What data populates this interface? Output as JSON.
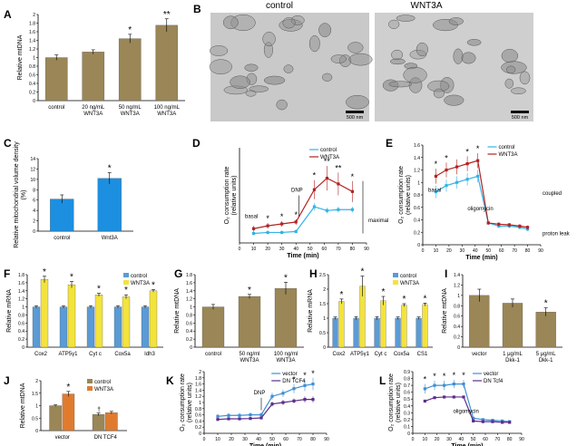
{
  "colors": {
    "olive": "#9a8656",
    "blue": "#5b9bd5",
    "yellow": "#f3e33c",
    "orange": "#e07b2e",
    "red": "#b22222",
    "cyan": "#33b3e6",
    "lightblue": "#3f8fd4",
    "purple": "#5b2d8c",
    "blue_bar": "#1c8fe0"
  },
  "micrographs": {
    "label": "B",
    "control_title": "control",
    "wnt_title": "WNT3A",
    "scale_text": "500 nm"
  },
  "chart_data": [
    {
      "id": "A",
      "type": "bar",
      "panel": "A",
      "ylabel": "Relative mtDNA",
      "ylim": [
        0,
        2
      ],
      "yticks": [
        "0",
        "0.2",
        "0.4",
        "0.6",
        "0.8",
        "1",
        "1.2",
        "1.4",
        "1.6",
        "1.8",
        "2"
      ],
      "categories": [
        "control",
        "20 ng/mL WNT3A",
        "50 ng/mL WNT3A",
        "100 ng/mL WNT3A"
      ],
      "series": [
        {
          "name": "mtDNA",
          "color": "olive",
          "values": [
            1.0,
            1.13,
            1.44,
            1.75
          ],
          "errors": [
            0.06,
            0.05,
            0.1,
            0.15
          ],
          "stars": [
            "",
            "",
            "*",
            "**"
          ]
        }
      ]
    },
    {
      "id": "C",
      "type": "bar",
      "panel": "C",
      "ylabel": "Relative mitochondrial volume density (%)",
      "ylim": [
        0,
        14
      ],
      "yticks": [
        "0",
        "2",
        "4",
        "6",
        "8",
        "10",
        "12",
        "14"
      ],
      "categories": [
        "control",
        "Wnt3A"
      ],
      "series": [
        {
          "name": "volume",
          "color": "blue_bar",
          "values": [
            6.2,
            10.2
          ],
          "errors": [
            0.8,
            1.1
          ],
          "stars": [
            "",
            "*"
          ]
        }
      ]
    },
    {
      "id": "D",
      "type": "line",
      "panel": "D",
      "ylabel": "O₂ consumption rate (relative units)",
      "xlabel": "Time (min)",
      "xlim": [
        0,
        90
      ],
      "ylim": [
        0,
        10
      ],
      "xticks": [
        "0",
        "10",
        "20",
        "30",
        "40",
        "50",
        "60",
        "70",
        "80",
        "90"
      ],
      "legend": [
        "control",
        "WNT3A"
      ],
      "x": [
        10,
        20,
        30,
        40,
        53,
        62,
        70,
        80
      ],
      "series": [
        {
          "name": "control",
          "color": "cyan",
          "values": [
            1.0,
            1.1,
            1.1,
            1.2,
            3.8,
            3.4,
            3.5,
            3.5
          ],
          "errors": [
            0.2,
            0.2,
            0.2,
            0.2,
            0.4,
            0.3,
            0.3,
            0.3
          ]
        },
        {
          "name": "WNT3A",
          "color": "red",
          "values": [
            1.5,
            1.8,
            2.0,
            2.2,
            5.6,
            6.8,
            6.2,
            5.4
          ],
          "errors": [
            0.3,
            0.3,
            0.3,
            0.3,
            1.0,
            1.3,
            1.2,
            1.1
          ]
        }
      ],
      "star_points": [
        20,
        30,
        40,
        53,
        62,
        70,
        80
      ],
      "star_labels": [
        "*",
        "*",
        "*",
        "*",
        "**",
        "**",
        "*"
      ],
      "annotations": {
        "basal": "basal",
        "dnp": "DNP",
        "maximal": "maximal"
      }
    },
    {
      "id": "E",
      "type": "line",
      "panel": "E",
      "ylabel": "O₂ consumption rate (relative units)",
      "xlabel": "Time (min)",
      "xlim": [
        0,
        90
      ],
      "ylim": [
        0,
        1.6
      ],
      "yticks": [
        "0",
        "0.2",
        "0.4",
        "0.6",
        "0.8",
        "1",
        "1.2",
        "1.4",
        "1.6"
      ],
      "xticks": [
        "0",
        "10",
        "20",
        "30",
        "40",
        "50",
        "60",
        "70",
        "80",
        "90"
      ],
      "legend": [
        "control",
        "WNT3A"
      ],
      "x": [
        10,
        18,
        26,
        34,
        42,
        50,
        58,
        66,
        74,
        80
      ],
      "series": [
        {
          "name": "control",
          "color": "cyan",
          "values": [
            0.85,
            0.95,
            1.0,
            1.05,
            1.1,
            0.35,
            0.3,
            0.3,
            0.28,
            0.25
          ],
          "errors": [
            0.1,
            0.1,
            0.1,
            0.1,
            0.1,
            0.03,
            0.03,
            0.03,
            0.03,
            0.03
          ]
        },
        {
          "name": "WNT3A",
          "color": "red",
          "values": [
            1.1,
            1.2,
            1.25,
            1.3,
            1.35,
            0.35,
            0.33,
            0.32,
            0.3,
            0.28
          ],
          "errors": [
            0.12,
            0.12,
            0.12,
            0.12,
            0.12,
            0.03,
            0.03,
            0.03,
            0.03,
            0.03
          ]
        }
      ],
      "star_points": [
        10,
        18,
        34,
        42
      ],
      "star_labels": [
        "*",
        "*",
        "*",
        "*"
      ],
      "annotations": {
        "basal": "basal",
        "oligomycin": "oligomycin",
        "coupled": "coupled",
        "proton_leak": "proton leak"
      }
    },
    {
      "id": "F",
      "type": "bar",
      "panel": "F",
      "ylabel": "Relative mRNA",
      "ylim": [
        0,
        1.8
      ],
      "yticks": [
        "0",
        "0.2",
        "0.4",
        "0.6",
        "0.8",
        "1",
        "1.2",
        "1.4",
        "1.6",
        "1.8"
      ],
      "categories": [
        "Cox2",
        "ATP5γ1",
        "Cyt c",
        "Cox5a",
        "Idh3"
      ],
      "legend": [
        "control",
        "WNT3A"
      ],
      "series": [
        {
          "name": "control",
          "color": "blue",
          "values": [
            1,
            1,
            1,
            1,
            1
          ],
          "errors": [
            0.03,
            0.03,
            0.03,
            0.03,
            0.03
          ]
        },
        {
          "name": "WNT3A",
          "color": "yellow",
          "values": [
            1.68,
            1.55,
            1.3,
            1.25,
            1.4
          ],
          "errors": [
            0.08,
            0.08,
            0.04,
            0.05,
            0.03
          ]
        }
      ],
      "stars": [
        "*",
        "*",
        "*",
        "*",
        "*"
      ]
    },
    {
      "id": "G",
      "type": "bar",
      "panel": "G",
      "ylabel": "Relative mtDNA",
      "ylim": [
        0,
        1.8
      ],
      "yticks": [
        "0",
        "0.2",
        "0.4",
        "0.6",
        "0.8",
        "1",
        "1.2",
        "1.4",
        "1.6",
        "1.8"
      ],
      "categories": [
        "control",
        "50 ng/ml WNT3A",
        "100 ng/ml WNT3A"
      ],
      "series": [
        {
          "name": "mtDNA",
          "color": "olive",
          "values": [
            1.0,
            1.26,
            1.46
          ],
          "errors": [
            0.06,
            0.05,
            0.15
          ],
          "stars": [
            "",
            "*",
            "*"
          ]
        }
      ]
    },
    {
      "id": "H",
      "type": "bar",
      "panel": "H",
      "ylabel": "Relative mRNA",
      "ylim": [
        0,
        2.5
      ],
      "yticks": [
        "0",
        "0.5",
        "1",
        "1.5",
        "2",
        "2.5"
      ],
      "categories": [
        "Cox2",
        "ATP5γ1",
        "Cyt c",
        "Cox5a",
        "CS1"
      ],
      "legend": [
        "control",
        "WNT3A"
      ],
      "series": [
        {
          "name": "control",
          "color": "blue",
          "values": [
            1,
            1,
            1,
            1,
            1
          ],
          "errors": [
            0.04,
            0.05,
            0.05,
            0.04,
            0.04
          ]
        },
        {
          "name": "WNT3A",
          "color": "yellow",
          "values": [
            1.58,
            2.1,
            1.6,
            1.45,
            1.47
          ],
          "errors": [
            0.08,
            0.35,
            0.15,
            0.05,
            0.05
          ]
        }
      ],
      "stars": [
        "*",
        "*",
        "*",
        "*",
        "*"
      ]
    },
    {
      "id": "I",
      "type": "bar",
      "panel": "I",
      "ylabel": "Relative mtDNA",
      "ylim": [
        0,
        1.4
      ],
      "yticks": [
        "0",
        "0.2",
        "0.4",
        "0.6",
        "0.8",
        "1",
        "1.2",
        "1.4"
      ],
      "categories": [
        "vector",
        "1 μg/mL Dkk-1",
        "5 μg/mL Dkk-1"
      ],
      "series": [
        {
          "name": "mtDNA",
          "color": "olive",
          "values": [
            1.0,
            0.85,
            0.68
          ],
          "errors": [
            0.12,
            0.08,
            0.08
          ],
          "stars": [
            "",
            "",
            "*"
          ]
        }
      ]
    },
    {
      "id": "J",
      "type": "bar",
      "panel": "J",
      "ylabel": "Relative mtDNA",
      "ylim": [
        0,
        2
      ],
      "yticks": [
        "0",
        "0.5",
        "1",
        "1.5",
        "2"
      ],
      "categories": [
        "vector",
        "DN TCF4"
      ],
      "legend": [
        "control",
        "WNT3A"
      ],
      "series": [
        {
          "name": "control",
          "color": "olive",
          "values": [
            1.0,
            0.65
          ],
          "errors": [
            0.03,
            0.05
          ]
        },
        {
          "name": "WNT3A",
          "color": "orange",
          "values": [
            1.47,
            0.72
          ],
          "errors": [
            0.1,
            0.05
          ]
        }
      ],
      "stars": [
        "*",
        ""
      ],
      "dagger": "†"
    },
    {
      "id": "K",
      "type": "line",
      "panel": "K",
      "ylabel": "O₂ consumption rate (relative units)",
      "xlabel": "Time (min)",
      "xlim": [
        0,
        90
      ],
      "ylim": [
        0,
        2
      ],
      "yticks": [
        "0",
        "0.2",
        "0.4",
        "0.6",
        "0.8",
        "1",
        "1.2",
        "1.4",
        "1.6",
        "1.8",
        "2"
      ],
      "xticks": [
        "0",
        "10",
        "20",
        "30",
        "40",
        "50",
        "60",
        "70",
        "80",
        "90"
      ],
      "legend": [
        "vector",
        "DN TCF4"
      ],
      "x": [
        10,
        18,
        26,
        34,
        42,
        50,
        58,
        66,
        74,
        80
      ],
      "series": [
        {
          "name": "vector",
          "color": "lightblue",
          "values": [
            0.55,
            0.58,
            0.58,
            0.6,
            0.6,
            1.2,
            1.3,
            1.45,
            1.55,
            1.6
          ],
          "errors": [
            0.08,
            0.08,
            0.08,
            0.08,
            0.08,
            0.12,
            0.12,
            0.15,
            0.18,
            0.2
          ]
        },
        {
          "name": "DN TCF4",
          "color": "purple",
          "values": [
            0.45,
            0.47,
            0.47,
            0.48,
            0.5,
            0.95,
            1.0,
            1.05,
            1.1,
            1.1
          ],
          "errors": [
            0.04,
            0.04,
            0.04,
            0.04,
            0.04,
            0.08,
            0.08,
            0.08,
            0.1,
            0.1
          ]
        }
      ],
      "star_points": [
        66,
        74,
        80
      ],
      "star_labels": [
        "*",
        "*",
        "*"
      ],
      "annotations": {
        "dnp": "DNP"
      }
    },
    {
      "id": "L",
      "type": "line",
      "panel": "L",
      "ylabel": "O₂ consumption rate (relative units)",
      "xlabel": "Time (min)",
      "xlim": [
        0,
        90
      ],
      "ylim": [
        0,
        0.9
      ],
      "yticks": [
        "0",
        "0.1",
        "0.2",
        "0.3",
        "0.4",
        "0.5",
        "0.6",
        "0.7",
        "0.8",
        "0.9"
      ],
      "xticks": [
        "0",
        "10",
        "20",
        "30",
        "40",
        "50",
        "60",
        "70",
        "80",
        "90"
      ],
      "legend": [
        "vector",
        "DN Tcf4"
      ],
      "x": [
        10,
        18,
        26,
        34,
        42,
        50,
        58,
        66,
        74,
        80
      ],
      "series": [
        {
          "name": "vector",
          "color": "lightblue",
          "values": [
            0.65,
            0.7,
            0.7,
            0.72,
            0.72,
            0.22,
            0.2,
            0.19,
            0.18,
            0.17
          ],
          "errors": [
            0.07,
            0.07,
            0.07,
            0.06,
            0.06,
            0.02,
            0.02,
            0.02,
            0.02,
            0.02
          ]
        },
        {
          "name": "DN Tcf4",
          "color": "purple",
          "values": [
            0.47,
            0.52,
            0.53,
            0.53,
            0.53,
            0.18,
            0.17,
            0.17,
            0.16,
            0.16
          ],
          "errors": [
            0.02,
            0.02,
            0.02,
            0.02,
            0.02,
            0.02,
            0.02,
            0.02,
            0.02,
            0.02
          ]
        }
      ],
      "star_points": [
        10,
        18,
        26,
        34,
        42
      ],
      "star_labels": [
        "*",
        "*",
        "*",
        "*",
        "*"
      ],
      "annotations": {
        "oligomycin": "oligomycin"
      }
    }
  ]
}
